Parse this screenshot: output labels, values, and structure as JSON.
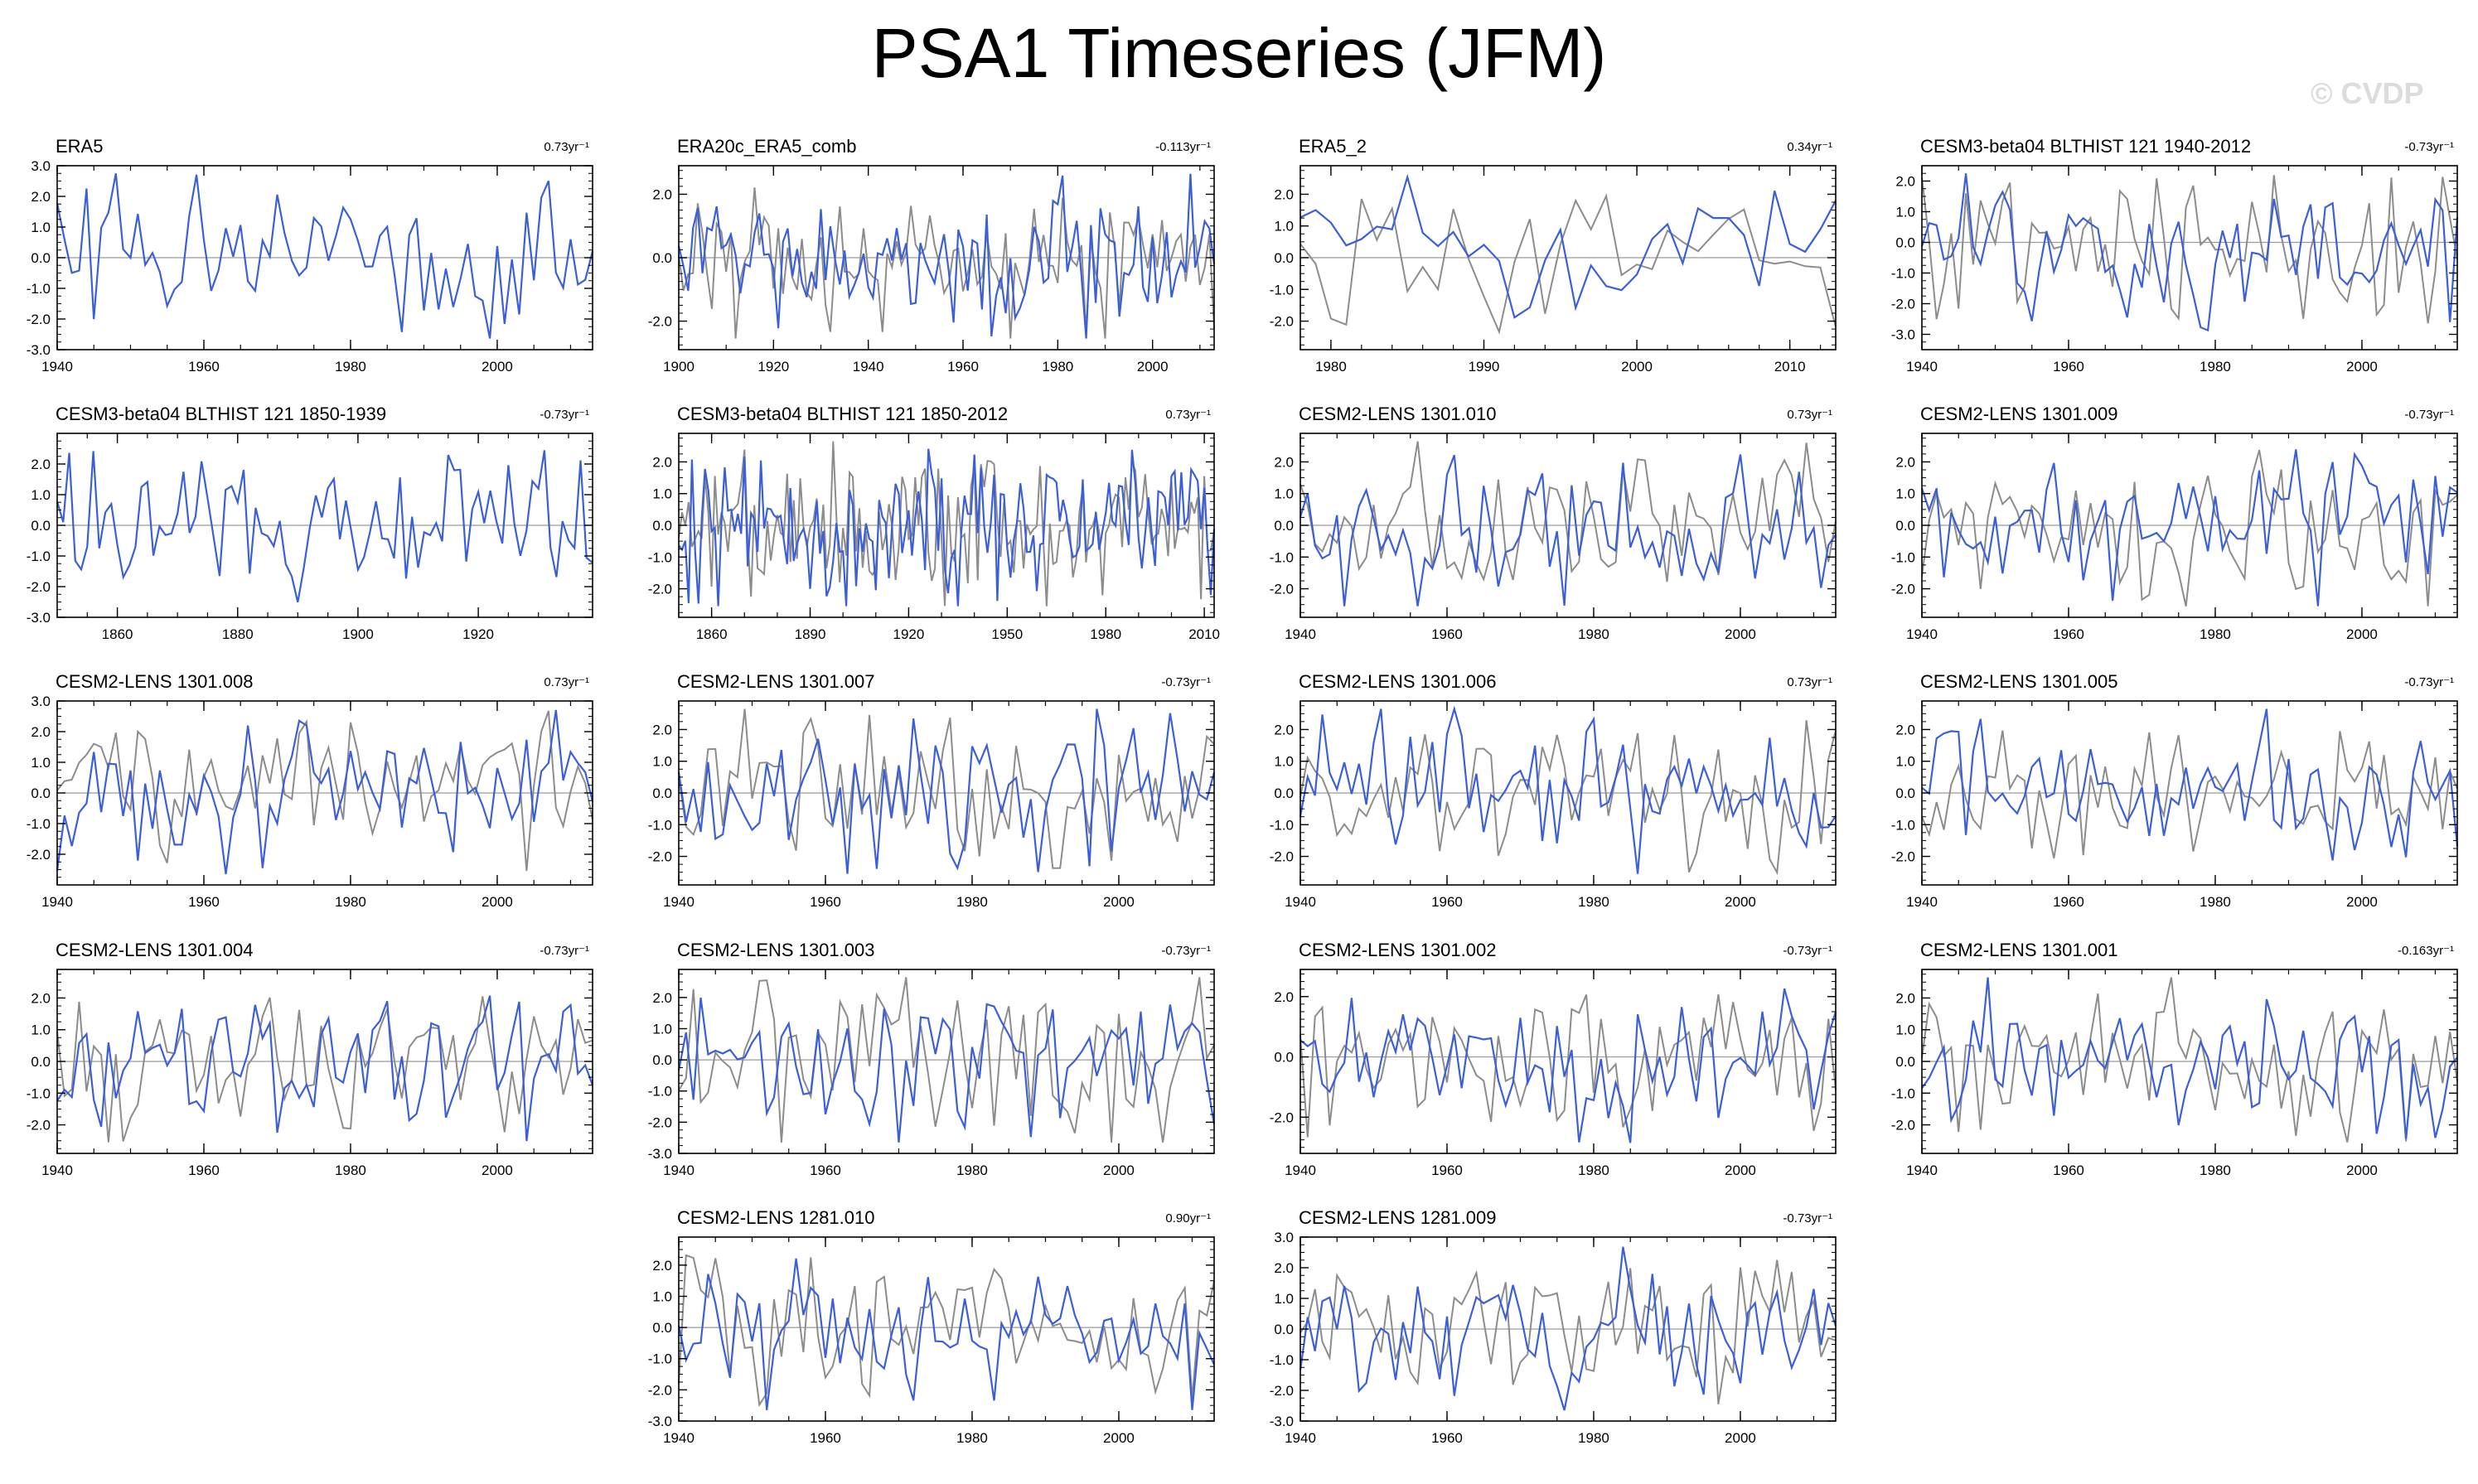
{
  "title": "PSA1 Timeseries (JFM)",
  "watermark": "© CVDP",
  "colors": {
    "model": "#3b5fd9",
    "observed": "#8c8c8c",
    "zero_line": "#9a9a9a",
    "frame": "#000000"
  },
  "chart_data": [
    {
      "type": "line",
      "title": "ERA5",
      "trend": "0.73yr⁻¹",
      "xlim": [
        1940,
        2013
      ],
      "ylim": [
        -3,
        3
      ],
      "xticks": [
        1940,
        1960,
        1980,
        2000
      ],
      "yticks": [
        -3,
        -2,
        -1,
        0,
        1,
        2,
        3
      ],
      "show_reference": false,
      "seed": 1
    },
    {
      "type": "line",
      "title": "ERA20c_ERA5_comb",
      "trend": "-0.113yr⁻¹",
      "xlim": [
        1900,
        2013
      ],
      "ylim": [
        -2.9,
        2.9
      ],
      "xticks": [
        1900,
        1920,
        1940,
        1960,
        1980,
        2000
      ],
      "yticks": [
        -2,
        0,
        2
      ],
      "show_reference": true,
      "seed": 2
    },
    {
      "type": "line",
      "title": "ERA5_2",
      "trend": "0.34yr⁻¹",
      "xlim": [
        1978,
        2013
      ],
      "ylim": [
        -2.9,
        2.9
      ],
      "xticks": [
        1980,
        1990,
        2000,
        2010
      ],
      "yticks": [
        -2,
        -1,
        0,
        1,
        2
      ],
      "show_reference": true,
      "seed": 3
    },
    {
      "type": "line",
      "title": "CESM3-beta04 BLTHIST 121 1940-2012",
      "trend": "-0.73yr⁻¹",
      "xlim": [
        1940,
        2013
      ],
      "ylim": [
        -3.5,
        2.5
      ],
      "xticks": [
        1940,
        1960,
        1980,
        2000
      ],
      "yticks": [
        -3,
        -2,
        -1,
        0,
        1,
        2
      ],
      "show_reference": true,
      "seed": 4
    },
    {
      "type": "line",
      "title": "CESM3-beta04 BLTHIST 121 1850-1939",
      "trend": "-0.73yr⁻¹",
      "xlim": [
        1850,
        1939
      ],
      "ylim": [
        -3,
        3
      ],
      "xticks": [
        1860,
        1880,
        1900,
        1920
      ],
      "yticks": [
        -3,
        -2,
        -1,
        0,
        1,
        2
      ],
      "show_reference": false,
      "seed": 5
    },
    {
      "type": "line",
      "title": "CESM3-beta04 BLTHIST 121 1850-2012",
      "trend": "0.73yr⁻¹",
      "xlim": [
        1850,
        2013
      ],
      "ylim": [
        -2.9,
        2.9
      ],
      "xticks": [
        1860,
        1890,
        1920,
        1950,
        1980,
        2010
      ],
      "yticks": [
        -2,
        -1,
        0,
        1,
        2
      ],
      "show_reference": true,
      "seed": 6
    },
    {
      "type": "line",
      "title": "CESM2-LENS 1301.010",
      "trend": "0.73yr⁻¹",
      "xlim": [
        1940,
        2013
      ],
      "ylim": [
        -2.9,
        2.9
      ],
      "xticks": [
        1940,
        1960,
        1980,
        2000
      ],
      "yticks": [
        -2,
        -1,
        0,
        1,
        2
      ],
      "show_reference": true,
      "seed": 7
    },
    {
      "type": "line",
      "title": "CESM2-LENS 1301.009",
      "trend": "-0.73yr⁻¹",
      "xlim": [
        1940,
        2013
      ],
      "ylim": [
        -2.9,
        2.9
      ],
      "xticks": [
        1940,
        1960,
        1980,
        2000
      ],
      "yticks": [
        -2,
        -1,
        0,
        1,
        2
      ],
      "show_reference": true,
      "seed": 8
    },
    {
      "type": "line",
      "title": "CESM2-LENS 1301.008",
      "trend": "0.73yr⁻¹",
      "xlim": [
        1940,
        2013
      ],
      "ylim": [
        -3,
        3
      ],
      "xticks": [
        1940,
        1960,
        1980,
        2000
      ],
      "yticks": [
        -2,
        -1,
        0,
        1,
        2,
        3
      ],
      "show_reference": true,
      "seed": 9
    },
    {
      "type": "line",
      "title": "CESM2-LENS 1301.007",
      "trend": "-0.73yr⁻¹",
      "xlim": [
        1940,
        2013
      ],
      "ylim": [
        -2.9,
        2.9
      ],
      "xticks": [
        1940,
        1960,
        1980,
        2000
      ],
      "yticks": [
        -2,
        -1,
        0,
        1,
        2
      ],
      "show_reference": true,
      "seed": 10
    },
    {
      "type": "line",
      "title": "CESM2-LENS 1301.006",
      "trend": "0.73yr⁻¹",
      "xlim": [
        1940,
        2013
      ],
      "ylim": [
        -2.9,
        2.9
      ],
      "xticks": [
        1940,
        1960,
        1980,
        2000
      ],
      "yticks": [
        -2,
        -1,
        0,
        1,
        2
      ],
      "show_reference": true,
      "seed": 11
    },
    {
      "type": "line",
      "title": "CESM2-LENS 1301.005",
      "trend": "-0.73yr⁻¹",
      "xlim": [
        1940,
        2013
      ],
      "ylim": [
        -2.9,
        2.9
      ],
      "xticks": [
        1940,
        1960,
        1980,
        2000
      ],
      "yticks": [
        -2,
        -1,
        0,
        1,
        2
      ],
      "show_reference": true,
      "seed": 12
    },
    {
      "type": "line",
      "title": "CESM2-LENS 1301.004",
      "trend": "-0.73yr⁻¹",
      "xlim": [
        1940,
        2013
      ],
      "ylim": [
        -2.9,
        2.9
      ],
      "xticks": [
        1940,
        1960,
        1980,
        2000
      ],
      "yticks": [
        -2,
        -1,
        0,
        1,
        2
      ],
      "show_reference": true,
      "seed": 13
    },
    {
      "type": "line",
      "title": "CESM2-LENS 1301.003",
      "trend": "-0.73yr⁻¹",
      "xlim": [
        1940,
        2013
      ],
      "ylim": [
        -3,
        2.9
      ],
      "xticks": [
        1940,
        1960,
        1980,
        2000
      ],
      "yticks": [
        -3,
        -2,
        -1,
        0,
        1,
        2
      ],
      "show_reference": true,
      "seed": 14
    },
    {
      "type": "line",
      "title": "CESM2-LENS 1301.002",
      "trend": "-0.73yr⁻¹",
      "xlim": [
        1940,
        2013
      ],
      "ylim": [
        -3.2,
        2.9
      ],
      "xticks": [
        1940,
        1960,
        1980,
        2000
      ],
      "yticks": [
        -2,
        0,
        2
      ],
      "show_reference": true,
      "seed": 15
    },
    {
      "type": "line",
      "title": "CESM2-LENS 1301.001",
      "trend": "-0.163yr⁻¹",
      "xlim": [
        1940,
        2013
      ],
      "ylim": [
        -2.9,
        2.9
      ],
      "xticks": [
        1940,
        1960,
        1980,
        2000
      ],
      "yticks": [
        -2,
        -1,
        0,
        1,
        2
      ],
      "show_reference": true,
      "seed": 16
    },
    {
      "type": "line",
      "title": "CESM2-LENS 1281.010",
      "trend": "0.90yr⁻¹",
      "xlim": [
        1940,
        2013
      ],
      "ylim": [
        -3,
        2.9
      ],
      "xticks": [
        1940,
        1960,
        1980,
        2000
      ],
      "yticks": [
        -3,
        -2,
        -1,
        0,
        1,
        2
      ],
      "show_reference": true,
      "seed": 17
    },
    {
      "type": "line",
      "title": "CESM2-LENS 1281.009",
      "trend": "-0.73yr⁻¹",
      "xlim": [
        1940,
        2013
      ],
      "ylim": [
        -3,
        3
      ],
      "xticks": [
        1940,
        1960,
        1980,
        2000
      ],
      "yticks": [
        -3,
        -2,
        -1,
        0,
        1,
        2,
        3
      ],
      "show_reference": true,
      "seed": 18
    }
  ]
}
